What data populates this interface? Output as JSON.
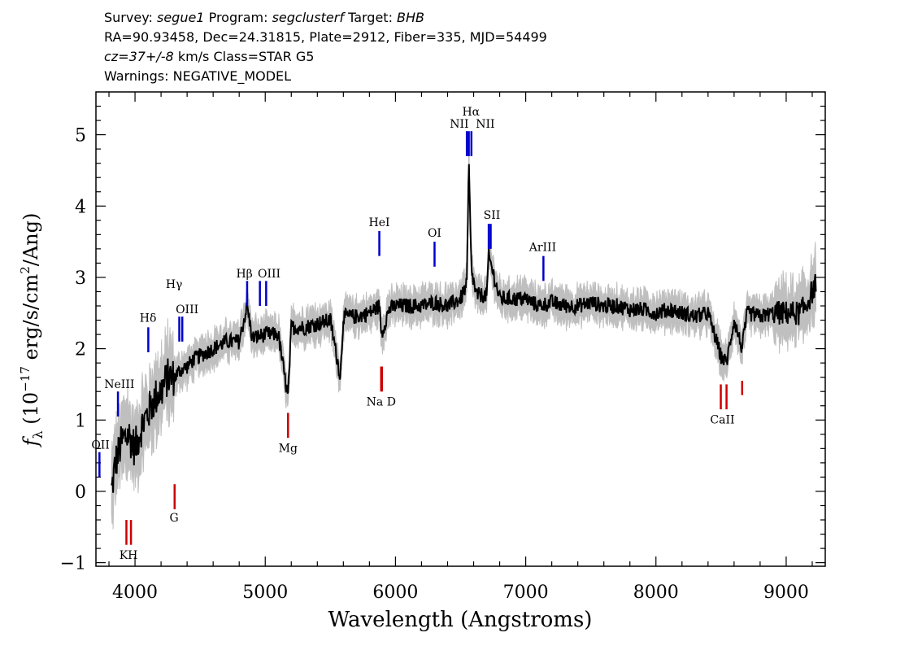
{
  "header": {
    "survey_label": "Survey:",
    "survey": "segue1",
    "program_label": "Program:",
    "program": "segclusterf",
    "target_label": "Target:",
    "target": "BHB",
    "line2": "RA=90.93458, Dec=24.31815, Plate=2912, Fiber=335, MJD=54499",
    "cz": "cz=37+/-8",
    "line3_rest": "km/s  Class=STAR G5",
    "line4": "Warnings: NEGATIVE_MODEL"
  },
  "chart_data": {
    "type": "line",
    "xlabel": "Wavelength (Angstroms)",
    "ylabel_main": "f",
    "ylabel_sub": "λ",
    "ylabel_rest": "(10",
    "ylabel_exp": "−17",
    "ylabel_unit": "erg/s/cm",
    "ylabel_exp2": "2",
    "ylabel_end": "/Ang)",
    "xlim": [
      3700,
      9300
    ],
    "ylim": [
      -1.05,
      5.6
    ],
    "x_ticks": [
      4000,
      5000,
      6000,
      7000,
      8000,
      9000
    ],
    "y_ticks": [
      -1,
      0,
      1,
      2,
      3,
      4,
      5
    ],
    "series": [
      {
        "role": "flux",
        "color": "#000000",
        "x": [
          3820,
          3850,
          3900,
          3950,
          4000,
          4050,
          4100,
          4150,
          4200,
          4250,
          4300,
          4350,
          4400,
          4450,
          4500,
          4600,
          4700,
          4800,
          4861,
          4900,
          5000,
          5100,
          5175,
          5200,
          5300,
          5400,
          5500,
          5577,
          5600,
          5700,
          5800,
          5876,
          5893,
          5950,
          6000,
          6100,
          6200,
          6300,
          6400,
          6500,
          6548,
          6563,
          6583,
          6620,
          6700,
          6716,
          6731,
          6800,
          6900,
          7000,
          7100,
          7200,
          7300,
          7400,
          7500,
          7600,
          7700,
          7800,
          7900,
          8000,
          8100,
          8200,
          8300,
          8400,
          8498,
          8542,
          8600,
          8662,
          8700,
          8800,
          8900,
          9000,
          9100,
          9150,
          9200,
          9230
        ],
        "y": [
          0.0,
          0.4,
          0.7,
          0.8,
          0.6,
          0.9,
          1.1,
          1.3,
          1.4,
          1.6,
          1.6,
          1.7,
          1.75,
          1.85,
          1.9,
          2.0,
          2.1,
          2.1,
          2.6,
          2.15,
          2.2,
          2.2,
          1.3,
          2.3,
          2.3,
          2.35,
          2.4,
          1.6,
          2.45,
          2.45,
          2.5,
          2.6,
          2.2,
          2.55,
          2.6,
          2.6,
          2.6,
          2.65,
          2.6,
          2.7,
          2.9,
          4.6,
          3.1,
          2.75,
          2.75,
          3.3,
          3.2,
          2.7,
          2.7,
          2.7,
          2.6,
          2.65,
          2.6,
          2.6,
          2.65,
          2.6,
          2.6,
          2.55,
          2.55,
          2.5,
          2.55,
          2.5,
          2.45,
          2.5,
          1.9,
          1.8,
          2.4,
          2.0,
          2.5,
          2.45,
          2.5,
          2.5,
          2.5,
          2.6,
          2.8,
          2.9
        ]
      }
    ],
    "emission_lines": [
      {
        "label": "NeIII",
        "wave": 3869,
        "y1": 1.05,
        "y2": 1.4
      },
      {
        "label": "OII",
        "wave": 3727,
        "y1": 0.2,
        "y2": 0.55
      },
      {
        "label": "Hδ",
        "wave": 4102,
        "y1": 1.95,
        "y2": 2.3
      },
      {
        "label": "Hγ",
        "wave": 4340,
        "y1": 2.1,
        "y2": 2.45
      },
      {
        "label": "OIII",
        "wave": 4363,
        "y1": 2.1,
        "y2": 2.45
      },
      {
        "label": "Hβ",
        "wave": 4861,
        "y1": 2.6,
        "y2": 2.95
      },
      {
        "label": "OIII",
        "wave": 4959,
        "y1": 2.6,
        "y2": 2.95
      },
      {
        "label": "OIII",
        "wave": 5007,
        "y1": 2.6,
        "y2": 2.95
      },
      {
        "label": "HeI",
        "wave": 5876,
        "y1": 3.3,
        "y2": 3.65
      },
      {
        "label": "OI",
        "wave": 6300,
        "y1": 3.15,
        "y2": 3.5
      },
      {
        "label": "NII",
        "wave": 6548,
        "y1": 4.7,
        "y2": 5.05
      },
      {
        "label": "Hα",
        "wave": 6563,
        "y1": 4.7,
        "y2": 5.05
      },
      {
        "label": "NII",
        "wave": 6583,
        "y1": 4.7,
        "y2": 5.05
      },
      {
        "label": "SII",
        "wave": 6716,
        "y1": 3.4,
        "y2": 3.75
      },
      {
        "label": "SII",
        "wave": 6731,
        "y1": 3.4,
        "y2": 3.75
      },
      {
        "label": "ArIII",
        "wave": 7136,
        "y1": 2.95,
        "y2": 3.3
      }
    ],
    "absorption_lines": [
      {
        "label": "K",
        "wave": 3934,
        "y1": -0.75,
        "y2": -0.4
      },
      {
        "label": "H",
        "wave": 3969,
        "y1": -0.75,
        "y2": -0.4
      },
      {
        "label": "G",
        "wave": 4304,
        "y1": 0.1,
        "y2": -0.25
      },
      {
        "label": "Mg",
        "wave": 5175,
        "y1": 1.1,
        "y2": 0.75
      },
      {
        "label": "Na",
        "wave": 5890,
        "y1": 1.75,
        "y2": 1.4
      },
      {
        "label": "D",
        "wave": 5896,
        "y1": 1.75,
        "y2": 1.4
      },
      {
        "label": "CaII",
        "wave": 8498,
        "y1": 1.5,
        "y2": 1.15
      },
      {
        "label": "CaII",
        "wave": 8542,
        "y1": 1.5,
        "y2": 1.15
      },
      {
        "label": "CaII",
        "wave": 8662,
        "y1": 1.55,
        "y2": 1.35
      }
    ],
    "emission_color": "#0000cc",
    "absorption_color": "#cc0000",
    "error_color": "#bfbfbf"
  }
}
